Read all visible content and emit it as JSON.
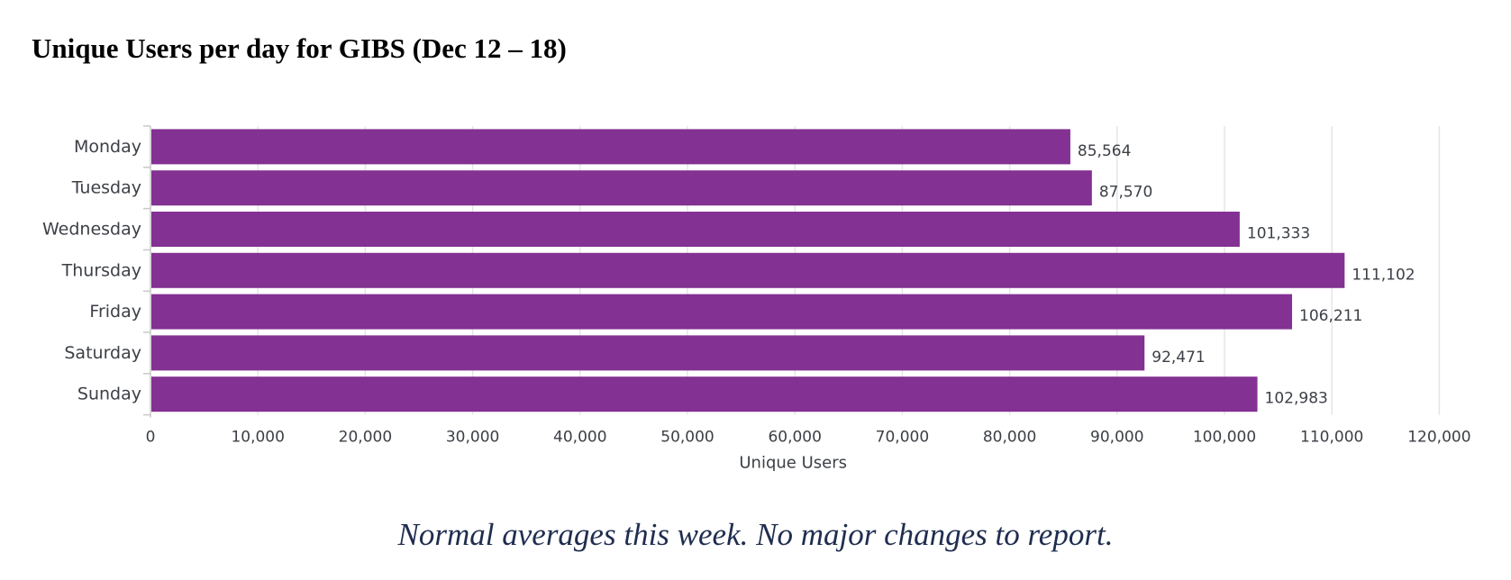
{
  "title": "Unique Users per day for GIBS (Dec 12 – 18)",
  "note": "Normal averages this week.  No major changes to report.",
  "colors": {
    "bar": "#833192",
    "grid": "#e5e5e5",
    "axis": "#c8c8c8",
    "text": "#3c4046",
    "note": "#1f2d4f"
  },
  "chart_data": {
    "type": "bar",
    "orientation": "horizontal",
    "categories": [
      "Monday",
      "Tuesday",
      "Wednesday",
      "Thursday",
      "Friday",
      "Saturday",
      "Sunday"
    ],
    "values": [
      85564,
      87570,
      101333,
      111102,
      106211,
      92471,
      102983
    ],
    "value_labels": [
      "85,564",
      "87,570",
      "101,333",
      "111,102",
      "106,211",
      "92,471",
      "102,983"
    ],
    "x_ticks": [
      0,
      10000,
      20000,
      30000,
      40000,
      50000,
      60000,
      70000,
      80000,
      90000,
      100000,
      110000,
      120000
    ],
    "x_tick_labels": [
      "0",
      "10,000",
      "20,000",
      "30,000",
      "40,000",
      "50,000",
      "60,000",
      "70,000",
      "80,000",
      "90,000",
      "100,000",
      "110,000",
      "120,000"
    ],
    "xlim": [
      0,
      120000
    ],
    "xlabel": "Unique Users",
    "ylabel": "",
    "grid": true,
    "legend": "none"
  }
}
